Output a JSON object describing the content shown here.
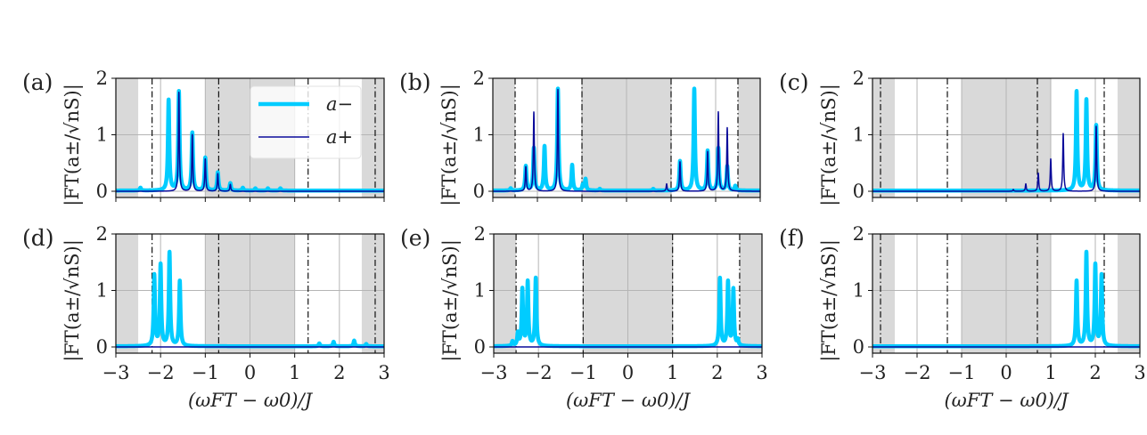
{
  "colors": {
    "a_minus": "#00ccff",
    "a_plus": "#0a0a9a",
    "shade": "#d9d9d9",
    "grid": "#b5b5b5",
    "vline": "#111111"
  },
  "legend": {
    "panel": "(a)",
    "placement": "upper-right",
    "entries": [
      "a−",
      "a+"
    ]
  },
  "chart_data": [
    {
      "panel": "(a)",
      "type": "line",
      "xlim": [
        -3,
        3
      ],
      "ylim": [
        -0.1,
        2
      ],
      "yticks": [
        "0",
        "1",
        "2"
      ],
      "xticks": [],
      "xlabel": "",
      "ylabel": "|FT(a±/√nS)|",
      "grid": true,
      "shaded_regions": [
        [
          -3,
          -2.5
        ],
        [
          -1,
          1
        ],
        [
          2.5,
          3
        ]
      ],
      "vlines": [
        -2.19,
        -0.7,
        1.3,
        2.8
      ],
      "series": [
        {
          "name": "a−",
          "peaks": [
            [
              -2.45,
              0.05
            ],
            [
              -1.82,
              1.6
            ],
            [
              -1.59,
              1.75
            ],
            [
              -1.29,
              1.02
            ],
            [
              -1.0,
              0.58
            ],
            [
              -0.72,
              0.32
            ],
            [
              -0.44,
              0.13
            ],
            [
              -0.16,
              0.05
            ],
            [
              0.12,
              0.04
            ],
            [
              0.4,
              0.04
            ],
            [
              0.68,
              0.04
            ]
          ]
        },
        {
          "name": "a+",
          "peaks": [
            [
              -1.59,
              1.75
            ],
            [
              -1.29,
              1.0
            ],
            [
              -1.0,
              0.57
            ],
            [
              -0.72,
              0.31
            ],
            [
              -0.44,
              0.12
            ]
          ]
        }
      ]
    },
    {
      "panel": "(b)",
      "type": "line",
      "xlim": [
        -3,
        3
      ],
      "ylim": [
        -0.1,
        2
      ],
      "yticks": [
        "0",
        "1",
        "2"
      ],
      "xticks": [],
      "xlabel": "",
      "ylabel": "|FT(a±/√nS)|",
      "grid": true,
      "shaded_regions": [
        [
          -3,
          -2.5
        ],
        [
          -1,
          1
        ],
        [
          2.5,
          3
        ]
      ],
      "vlines": [
        -2.5,
        -1,
        1,
        2.5
      ],
      "series": [
        {
          "name": "a−",
          "peaks": [
            [
              -2.6,
              0.04
            ],
            [
              -2.26,
              0.43
            ],
            [
              -2.08,
              0.75
            ],
            [
              -1.84,
              0.78
            ],
            [
              -1.54,
              1.8
            ],
            [
              -1.22,
              0.45
            ],
            [
              -0.98,
              0.1
            ],
            [
              -0.92,
              0.2
            ],
            [
              -0.6,
              0.03
            ],
            [
              0.6,
              0.03
            ],
            [
              1.2,
              0.52
            ],
            [
              1.52,
              1.8
            ],
            [
              1.82,
              0.7
            ],
            [
              2.06,
              0.75
            ],
            [
              2.26,
              0.43
            ],
            [
              2.44,
              0.08
            ]
          ]
        },
        {
          "name": "a+",
          "peaks": [
            [
              -2.26,
              0.43
            ],
            [
              -2.08,
              1.4
            ],
            [
              -1.54,
              1.8
            ],
            [
              0.9,
              0.13
            ],
            [
              1.2,
              0.52
            ],
            [
              1.82,
              0.7
            ],
            [
              2.06,
              1.4
            ],
            [
              2.26,
              1.12
            ]
          ]
        }
      ]
    },
    {
      "panel": "(c)",
      "type": "line",
      "xlim": [
        -3,
        3
      ],
      "ylim": [
        -0.1,
        2
      ],
      "yticks": [
        "0",
        "1",
        "2"
      ],
      "xticks": [],
      "xlabel": "",
      "ylabel": "|FT(a±/√nS)|",
      "grid": true,
      "shaded_regions": [
        [
          -3,
          -2.5
        ],
        [
          -1,
          1
        ],
        [
          2.5,
          3
        ]
      ],
      "vlines": [
        -2.82,
        -1.32,
        0.7,
        2.2
      ],
      "series": [
        {
          "name": "a−",
          "peaks": [
            [
              1.58,
              1.75
            ],
            [
              1.8,
              1.6
            ],
            [
              2.02,
              1.15
            ]
          ]
        },
        {
          "name": "a+",
          "peaks": [
            [
              0.16,
              0.03
            ],
            [
              0.44,
              0.13
            ],
            [
              0.72,
              0.32
            ],
            [
              1.0,
              0.57
            ],
            [
              1.28,
              1.02
            ],
            [
              2.02,
              1.15
            ]
          ]
        }
      ]
    },
    {
      "panel": "(d)",
      "type": "line",
      "xlim": [
        -3,
        3
      ],
      "ylim": [
        -0.1,
        2
      ],
      "yticks": [
        "0",
        "1",
        "2"
      ],
      "xticks": [
        "−3",
        "−2",
        "−1",
        "0",
        "1",
        "2",
        "3"
      ],
      "xlabel": "(ωFT − ω0)/J",
      "ylabel": "|FT(a±/√nS)|",
      "grid": true,
      "shaded_regions": [
        [
          -3,
          -2.5
        ],
        [
          -1,
          1
        ],
        [
          2.5,
          3
        ]
      ],
      "vlines": [
        -2.19,
        -0.7,
        1.3,
        2.8
      ],
      "series": [
        {
          "name": "a−",
          "peaks": [
            [
              -2.14,
              1.25
            ],
            [
              -2.0,
              1.43
            ],
            [
              -1.8,
              1.65
            ],
            [
              -1.57,
              1.15
            ],
            [
              1.55,
              0.05
            ],
            [
              1.87,
              0.08
            ],
            [
              2.33,
              0.1
            ],
            [
              2.6,
              0.04
            ]
          ]
        },
        {
          "name": "a+",
          "peaks": []
        }
      ]
    },
    {
      "panel": "(e)",
      "type": "line",
      "xlim": [
        -3,
        3
      ],
      "ylim": [
        -0.1,
        2
      ],
      "yticks": [
        "0",
        "1",
        "2"
      ],
      "xticks": [
        "−3",
        "−2",
        "−1",
        "0",
        "1",
        "2",
        "3"
      ],
      "xlabel": "(ωFT − ω0)/J",
      "ylabel": "|FT(a±/√nS)|",
      "grid": true,
      "shaded_regions": [
        [
          -3,
          -2.5
        ],
        [
          -1,
          1
        ],
        [
          2.5,
          3
        ]
      ],
      "vlines": [
        -2.5,
        -1,
        1,
        2.5
      ],
      "series": [
        {
          "name": "a−",
          "peaks": [
            [
              -2.58,
              0.08
            ],
            [
              -2.46,
              0.22
            ],
            [
              -2.36,
              1.0
            ],
            [
              -2.24,
              1.13
            ],
            [
              -2.06,
              1.2
            ],
            [
              2.06,
              1.2
            ],
            [
              2.24,
              1.13
            ],
            [
              2.36,
              1.0
            ],
            [
              2.46,
              0.1
            ]
          ]
        },
        {
          "name": "a+",
          "peaks": []
        }
      ]
    },
    {
      "panel": "(f)",
      "type": "line",
      "xlim": [
        -3,
        3
      ],
      "ylim": [
        -0.1,
        2
      ],
      "yticks": [
        "0",
        "1",
        "2"
      ],
      "xticks": [
        "−3",
        "−2",
        "−1",
        "0",
        "1",
        "2",
        "3"
      ],
      "xlabel": "(ωFT − ω0)/J",
      "ylabel": "|FT(a±/√nS)|",
      "grid": true,
      "shaded_regions": [
        [
          -3,
          -2.5
        ],
        [
          -1,
          1
        ],
        [
          2.5,
          3
        ]
      ],
      "vlines": [
        -2.82,
        -1.32,
        0.7,
        2.2
      ],
      "series": [
        {
          "name": "a−",
          "peaks": [
            [
              1.58,
              1.15
            ],
            [
              1.8,
              1.65
            ],
            [
              2.0,
              1.43
            ],
            [
              2.14,
              1.25
            ]
          ]
        },
        {
          "name": "a+",
          "peaks": []
        }
      ]
    }
  ]
}
